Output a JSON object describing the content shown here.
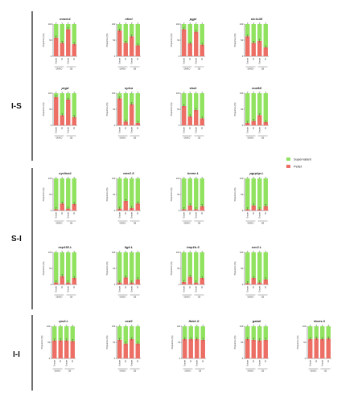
{
  "colors": {
    "supernatant": "#90e25f",
    "pellet": "#ec6e64"
  },
  "legend": {
    "supernatant": "Supernatant",
    "pellet": "Pellet"
  },
  "groups": [
    {
      "label": "I-S"
    },
    {
      "label": "S-I"
    },
    {
      "label": "I-I"
    }
  ],
  "chart_data": [
    {
      "type": "bar",
      "stacked": true,
      "group": "I-S",
      "title": "mmes1",
      "ylabel": "Proportion (%)",
      "ylim": [
        0,
        100
      ],
      "ticks": [
        "0",
        "50",
        "100"
      ],
      "categories": [
        "Oocyte",
        "8c",
        "Oocyte",
        "8c"
      ],
      "conditions": [
        "DMSO",
        "CB"
      ],
      "series": [
        {
          "name": "Pellet",
          "values": [
            58,
            42,
            84,
            38
          ]
        },
        {
          "name": "Supernatant",
          "values": [
            42,
            58,
            16,
            62
          ]
        }
      ]
    },
    {
      "type": "bar",
      "stacked": true,
      "group": "I-S",
      "title": "nfeel",
      "ylabel": "Proportion (%)",
      "ylim": [
        0,
        100
      ],
      "ticks": [
        "0",
        "50",
        "100"
      ],
      "categories": [
        "Oocyte",
        "8c",
        "Oocyte",
        "8c"
      ],
      "conditions": [
        "DMSO",
        "CB"
      ],
      "series": [
        {
          "name": "Pellet",
          "values": [
            80,
            42,
            62,
            34
          ]
        },
        {
          "name": "Supernatant",
          "values": [
            20,
            58,
            38,
            66
          ]
        }
      ]
    },
    {
      "type": "bar",
      "stacked": true,
      "group": "I-S",
      "title": "pgpl",
      "ylabel": "Proportion (%)",
      "ylim": [
        0,
        100
      ],
      "ticks": [
        "0",
        "50",
        "100"
      ],
      "categories": [
        "Oocyte",
        "8c",
        "Oocyte",
        "8c"
      ],
      "conditions": [
        "DMSO",
        "CB"
      ],
      "series": [
        {
          "name": "Pellet",
          "values": [
            84,
            40,
            76,
            36
          ]
        },
        {
          "name": "Supernatant",
          "values": [
            16,
            60,
            24,
            64
          ]
        }
      ]
    },
    {
      "type": "bar",
      "stacked": true,
      "group": "I-S",
      "title": "slc1s35",
      "ylabel": "Proportion (%)",
      "ylim": [
        0,
        100
      ],
      "ticks": [
        "0",
        "50",
        "100"
      ],
      "categories": [
        "Oocyte",
        "8c",
        "Oocyte",
        "8c"
      ],
      "conditions": [
        "DMSO",
        "CB"
      ],
      "series": [
        {
          "name": "Pellet",
          "values": [
            62,
            42,
            48,
            28
          ]
        },
        {
          "name": "Supernatant",
          "values": [
            38,
            58,
            52,
            72
          ]
        }
      ]
    },
    {
      "type": "bar",
      "stacked": true,
      "group": "I-S",
      "title": "prgd",
      "ylabel": "Proportion (%)",
      "ylim": [
        0,
        100
      ],
      "ticks": [
        "0",
        "50",
        "100"
      ],
      "categories": [
        "Oocyte",
        "8c",
        "Oocyte",
        "8c"
      ],
      "conditions": [
        "DMSO",
        "CB"
      ],
      "series": [
        {
          "name": "Pellet",
          "values": [
            88,
            32,
            80,
            26
          ]
        },
        {
          "name": "Supernatant",
          "values": [
            12,
            68,
            20,
            74
          ]
        }
      ]
    },
    {
      "type": "bar",
      "stacked": true,
      "group": "I-S",
      "title": "sytca",
      "ylabel": "Proportion (%)",
      "ylim": [
        0,
        100
      ],
      "ticks": [
        "0",
        "50",
        "100"
      ],
      "categories": [
        "Oocyte",
        "8c",
        "Oocyte",
        "8c"
      ],
      "conditions": [
        "DMSO",
        "CB"
      ],
      "series": [
        {
          "name": "Pellet",
          "values": [
            84,
            12,
            66,
            8
          ]
        },
        {
          "name": "Supernatant",
          "values": [
            16,
            88,
            34,
            92
          ]
        }
      ]
    },
    {
      "type": "bar",
      "stacked": true,
      "group": "I-S",
      "title": "sha1",
      "ylabel": "Proportion (%)",
      "ylim": [
        0,
        100
      ],
      "ticks": [
        "0",
        "50",
        "100"
      ],
      "categories": [
        "Oocyte",
        "8c",
        "Oocyte",
        "8c"
      ],
      "conditions": [
        "DMSO",
        "CB"
      ],
      "series": [
        {
          "name": "Pellet",
          "values": [
            60,
            28,
            48,
            22
          ]
        },
        {
          "name": "Supernatant",
          "values": [
            40,
            72,
            52,
            78
          ]
        }
      ]
    },
    {
      "type": "bar",
      "stacked": true,
      "group": "I-S",
      "title": "xvalk8",
      "ylabel": "Proportion (%)",
      "ylim": [
        0,
        100
      ],
      "ticks": [
        "0",
        "50",
        "100"
      ],
      "categories": [
        "Oocyte",
        "8c",
        "Oocyte",
        "8c"
      ],
      "conditions": [
        "DMSO",
        "CB"
      ],
      "series": [
        {
          "name": "Pellet",
          "values": [
            8,
            14,
            32,
            10
          ]
        },
        {
          "name": "Supernatant",
          "values": [
            92,
            86,
            68,
            90
          ]
        }
      ]
    },
    {
      "type": "bar",
      "stacked": true,
      "group": "S-I",
      "title": "cyclina1",
      "ylabel": "Proportion (%)",
      "ylim": [
        0,
        100
      ],
      "ticks": [
        "0",
        "50",
        "100"
      ],
      "categories": [
        "Oocyte",
        "8c",
        "Oocyte",
        "8c"
      ],
      "conditions": [
        "DMSO",
        "CB"
      ],
      "series": [
        {
          "name": "Pellet",
          "values": [
            4,
            22,
            6,
            20
          ]
        },
        {
          "name": "Supernatant",
          "values": [
            96,
            78,
            94,
            80
          ]
        }
      ]
    },
    {
      "type": "bar",
      "stacked": true,
      "group": "S-I",
      "title": "wee2.S",
      "ylabel": "Proportion (%)",
      "ylim": [
        0,
        100
      ],
      "ticks": [
        "0",
        "50",
        "100"
      ],
      "categories": [
        "Oocyte",
        "8c",
        "Oocyte",
        "8c"
      ],
      "conditions": [
        "DMSO",
        "CB"
      ],
      "series": [
        {
          "name": "Pellet",
          "values": [
            6,
            30,
            8,
            22
          ]
        },
        {
          "name": "Supernatant",
          "values": [
            94,
            70,
            92,
            78
          ]
        }
      ]
    },
    {
      "type": "bar",
      "stacked": true,
      "group": "S-I",
      "title": "hmmr.L",
      "ylabel": "Proportion (%)",
      "ylim": [
        0,
        100
      ],
      "ticks": [
        "0",
        "50",
        "100"
      ],
      "categories": [
        "Oocyte",
        "8c",
        "Oocyte",
        "8c"
      ],
      "conditions": [
        "DMSO",
        "CB"
      ],
      "series": [
        {
          "name": "Pellet",
          "values": [
            4,
            16,
            4,
            14
          ]
        },
        {
          "name": "Supernatant",
          "values": [
            96,
            84,
            96,
            86
          ]
        }
      ]
    },
    {
      "type": "bar",
      "stacked": true,
      "group": "S-I",
      "title": "pgrpbp.L",
      "ylabel": "Proportion (%)",
      "ylim": [
        0,
        100
      ],
      "ticks": [
        "0",
        "50",
        "100"
      ],
      "categories": [
        "Oocyte",
        "8c",
        "Oocyte",
        "8c"
      ],
      "conditions": [
        "DMSO",
        "CB"
      ],
      "series": [
        {
          "name": "Pellet",
          "values": [
            4,
            16,
            4,
            14
          ]
        },
        {
          "name": "Supernatant",
          "values": [
            96,
            84,
            96,
            86
          ]
        }
      ]
    },
    {
      "type": "bar",
      "stacked": true,
      "group": "S-I",
      "title": "cep152.L",
      "ylabel": "Proportion (%)",
      "ylim": [
        0,
        100
      ],
      "ticks": [
        "0",
        "50",
        "100"
      ],
      "categories": [
        "Oocyte",
        "8c",
        "Oocyte",
        "8c"
      ],
      "conditions": [
        "DMSO",
        "CB"
      ],
      "series": [
        {
          "name": "Pellet",
          "values": [
            6,
            26,
            6,
            20
          ]
        },
        {
          "name": "Supernatant",
          "values": [
            94,
            74,
            94,
            80
          ]
        }
      ]
    },
    {
      "type": "bar",
      "stacked": true,
      "group": "S-I",
      "title": "lig4.L",
      "ylabel": "Proportion (%)",
      "ylim": [
        0,
        100
      ],
      "ticks": [
        "0",
        "50",
        "100"
      ],
      "categories": [
        "Oocyte",
        "8c",
        "Oocyte",
        "8c"
      ],
      "conditions": [
        "DMSO",
        "CB"
      ],
      "series": [
        {
          "name": "Pellet",
          "values": [
            6,
            22,
            6,
            16
          ]
        },
        {
          "name": "Supernatant",
          "values": [
            94,
            78,
            94,
            84
          ]
        }
      ]
    },
    {
      "type": "bar",
      "stacked": true,
      "group": "S-I",
      "title": "tmp1b.S",
      "ylabel": "Proportion (%)",
      "ylim": [
        0,
        100
      ],
      "ticks": [
        "0",
        "50",
        "100"
      ],
      "categories": [
        "Oocyte",
        "8c",
        "Oocyte",
        "8c"
      ],
      "conditions": [
        "DMSO",
        "CB"
      ],
      "series": [
        {
          "name": "Pellet",
          "values": [
            8,
            24,
            6,
            20
          ]
        },
        {
          "name": "Supernatant",
          "values": [
            92,
            76,
            94,
            80
          ]
        }
      ]
    },
    {
      "type": "bar",
      "stacked": true,
      "group": "S-I",
      "title": "sxc2.L",
      "ylabel": "Proportion (%)",
      "ylim": [
        0,
        100
      ],
      "ticks": [
        "0",
        "50",
        "100"
      ],
      "categories": [
        "Oocyte",
        "8c",
        "Oocyte",
        "8c"
      ],
      "conditions": [
        "DMSO",
        "CB"
      ],
      "series": [
        {
          "name": "Pellet",
          "values": [
            4,
            20,
            6,
            16
          ]
        },
        {
          "name": "Supernatant",
          "values": [
            96,
            80,
            94,
            84
          ]
        }
      ]
    },
    {
      "type": "bar",
      "stacked": true,
      "group": "I-I",
      "title": "rps2.L",
      "ylabel": "Proportion (%)",
      "ylim": [
        0,
        100
      ],
      "ticks": [
        "0",
        "50",
        "100"
      ],
      "categories": [
        "Oocyte",
        "8c",
        "Oocyte",
        "8c"
      ],
      "conditions": [
        "DMSO",
        "CB"
      ],
      "series": [
        {
          "name": "Pellet",
          "values": [
            56,
            56,
            56,
            54
          ]
        },
        {
          "name": "Supernatant",
          "values": [
            44,
            44,
            44,
            46
          ]
        }
      ]
    },
    {
      "type": "bar",
      "stacked": true,
      "group": "I-I",
      "title": "ecd2",
      "ylabel": "Proportion (%)",
      "ylim": [
        0,
        100
      ],
      "ticks": [
        "0",
        "50",
        "100"
      ],
      "categories": [
        "Oocyte",
        "8c",
        "Oocyte",
        "8c"
      ],
      "conditions": [
        "DMSO",
        "CB"
      ],
      "series": [
        {
          "name": "Pellet",
          "values": [
            58,
            46,
            60,
            46
          ]
        },
        {
          "name": "Supernatant",
          "values": [
            42,
            54,
            40,
            54
          ]
        }
      ]
    },
    {
      "type": "bar",
      "stacked": true,
      "group": "I-I",
      "title": "fbla1.S",
      "ylabel": "Proportion (%)",
      "ylim": [
        0,
        100
      ],
      "ticks": [
        "0",
        "50",
        "100"
      ],
      "categories": [
        "Oocyte",
        "8c",
        "Oocyte",
        "8c"
      ],
      "conditions": [
        "DMSO",
        "CB"
      ],
      "series": [
        {
          "name": "Pellet",
          "values": [
            60,
            60,
            60,
            58
          ]
        },
        {
          "name": "Supernatant",
          "values": [
            40,
            40,
            40,
            42
          ]
        }
      ]
    },
    {
      "type": "bar",
      "stacked": true,
      "group": "I-I",
      "title": "gata6",
      "ylabel": "Proportion (%)",
      "ylim": [
        0,
        100
      ],
      "ticks": [
        "0",
        "50",
        "100"
      ],
      "categories": [
        "Oocyte",
        "8c",
        "Oocyte",
        "8c"
      ],
      "conditions": [
        "DMSO",
        "CB"
      ],
      "series": [
        {
          "name": "Pellet",
          "values": [
            60,
            58,
            56,
            58
          ]
        },
        {
          "name": "Supernatant",
          "values": [
            40,
            42,
            44,
            42
          ]
        }
      ]
    },
    {
      "type": "bar",
      "stacked": true,
      "group": "I-I",
      "title": "tbxes.3",
      "ylabel": "Proportion (%)",
      "ylim": [
        0,
        100
      ],
      "ticks": [
        "0",
        "50",
        "100"
      ],
      "categories": [
        "Oocyte",
        "8c",
        "Oocyte",
        "8c"
      ],
      "conditions": [
        "DMSO",
        "CB"
      ],
      "series": [
        {
          "name": "Pellet",
          "values": [
            60,
            62,
            60,
            62
          ]
        },
        {
          "name": "Supernatant",
          "values": [
            40,
            38,
            40,
            38
          ]
        }
      ]
    }
  ]
}
